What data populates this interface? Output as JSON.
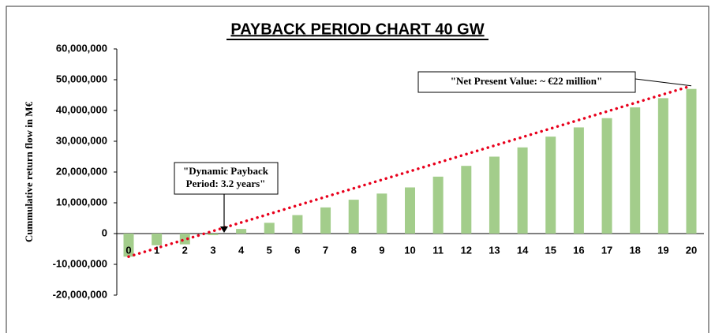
{
  "chart_data": {
    "type": "bar",
    "title": "PAYBACK PERIOD CHART 40 GW",
    "y_label": "Cummulative return flow in M€",
    "categories": [
      "0",
      "1",
      "2",
      "3",
      "4",
      "5",
      "6",
      "7",
      "8",
      "9",
      "10",
      "11",
      "12",
      "13",
      "14",
      "15",
      "16",
      "17",
      "18",
      "19",
      "20"
    ],
    "values": [
      -7500000,
      -3800000,
      -3500000,
      -500000,
      1500000,
      3500000,
      6000000,
      8500000,
      11000000,
      13000000,
      15000000,
      18500000,
      22000000,
      25000000,
      28000000,
      31500000,
      34500000,
      37500000,
      41000000,
      44000000,
      47000000
    ],
    "color": "#a3cd8b",
    "trendline": {
      "color": "#e8001c",
      "values": [
        -7500000,
        48000000
      ]
    },
    "ylim": [
      -20000000,
      60000000
    ],
    "yticks": [
      {
        "value": -20000000,
        "label": "-20,000,000"
      },
      {
        "value": -10000000,
        "label": "-10,000,000"
      },
      0,
      {
        "value": 10000000,
        "label": "10,000,000"
      },
      {
        "value": 20000000,
        "label": "20,000,000"
      },
      {
        "value": 30000000,
        "label": "30,000,000"
      },
      {
        "value": 40000000,
        "label": "40,000,000"
      },
      {
        "value": 50000000,
        "label": "50,000,000"
      },
      {
        "value": 60000000,
        "label": "60,000,000"
      }
    ],
    "annotations": {
      "npv": "\"Net Present Value: ~ €22 million\"",
      "payback": [
        "\"Dynamic Payback",
        "Period: 3.2 years\""
      ]
    }
  }
}
